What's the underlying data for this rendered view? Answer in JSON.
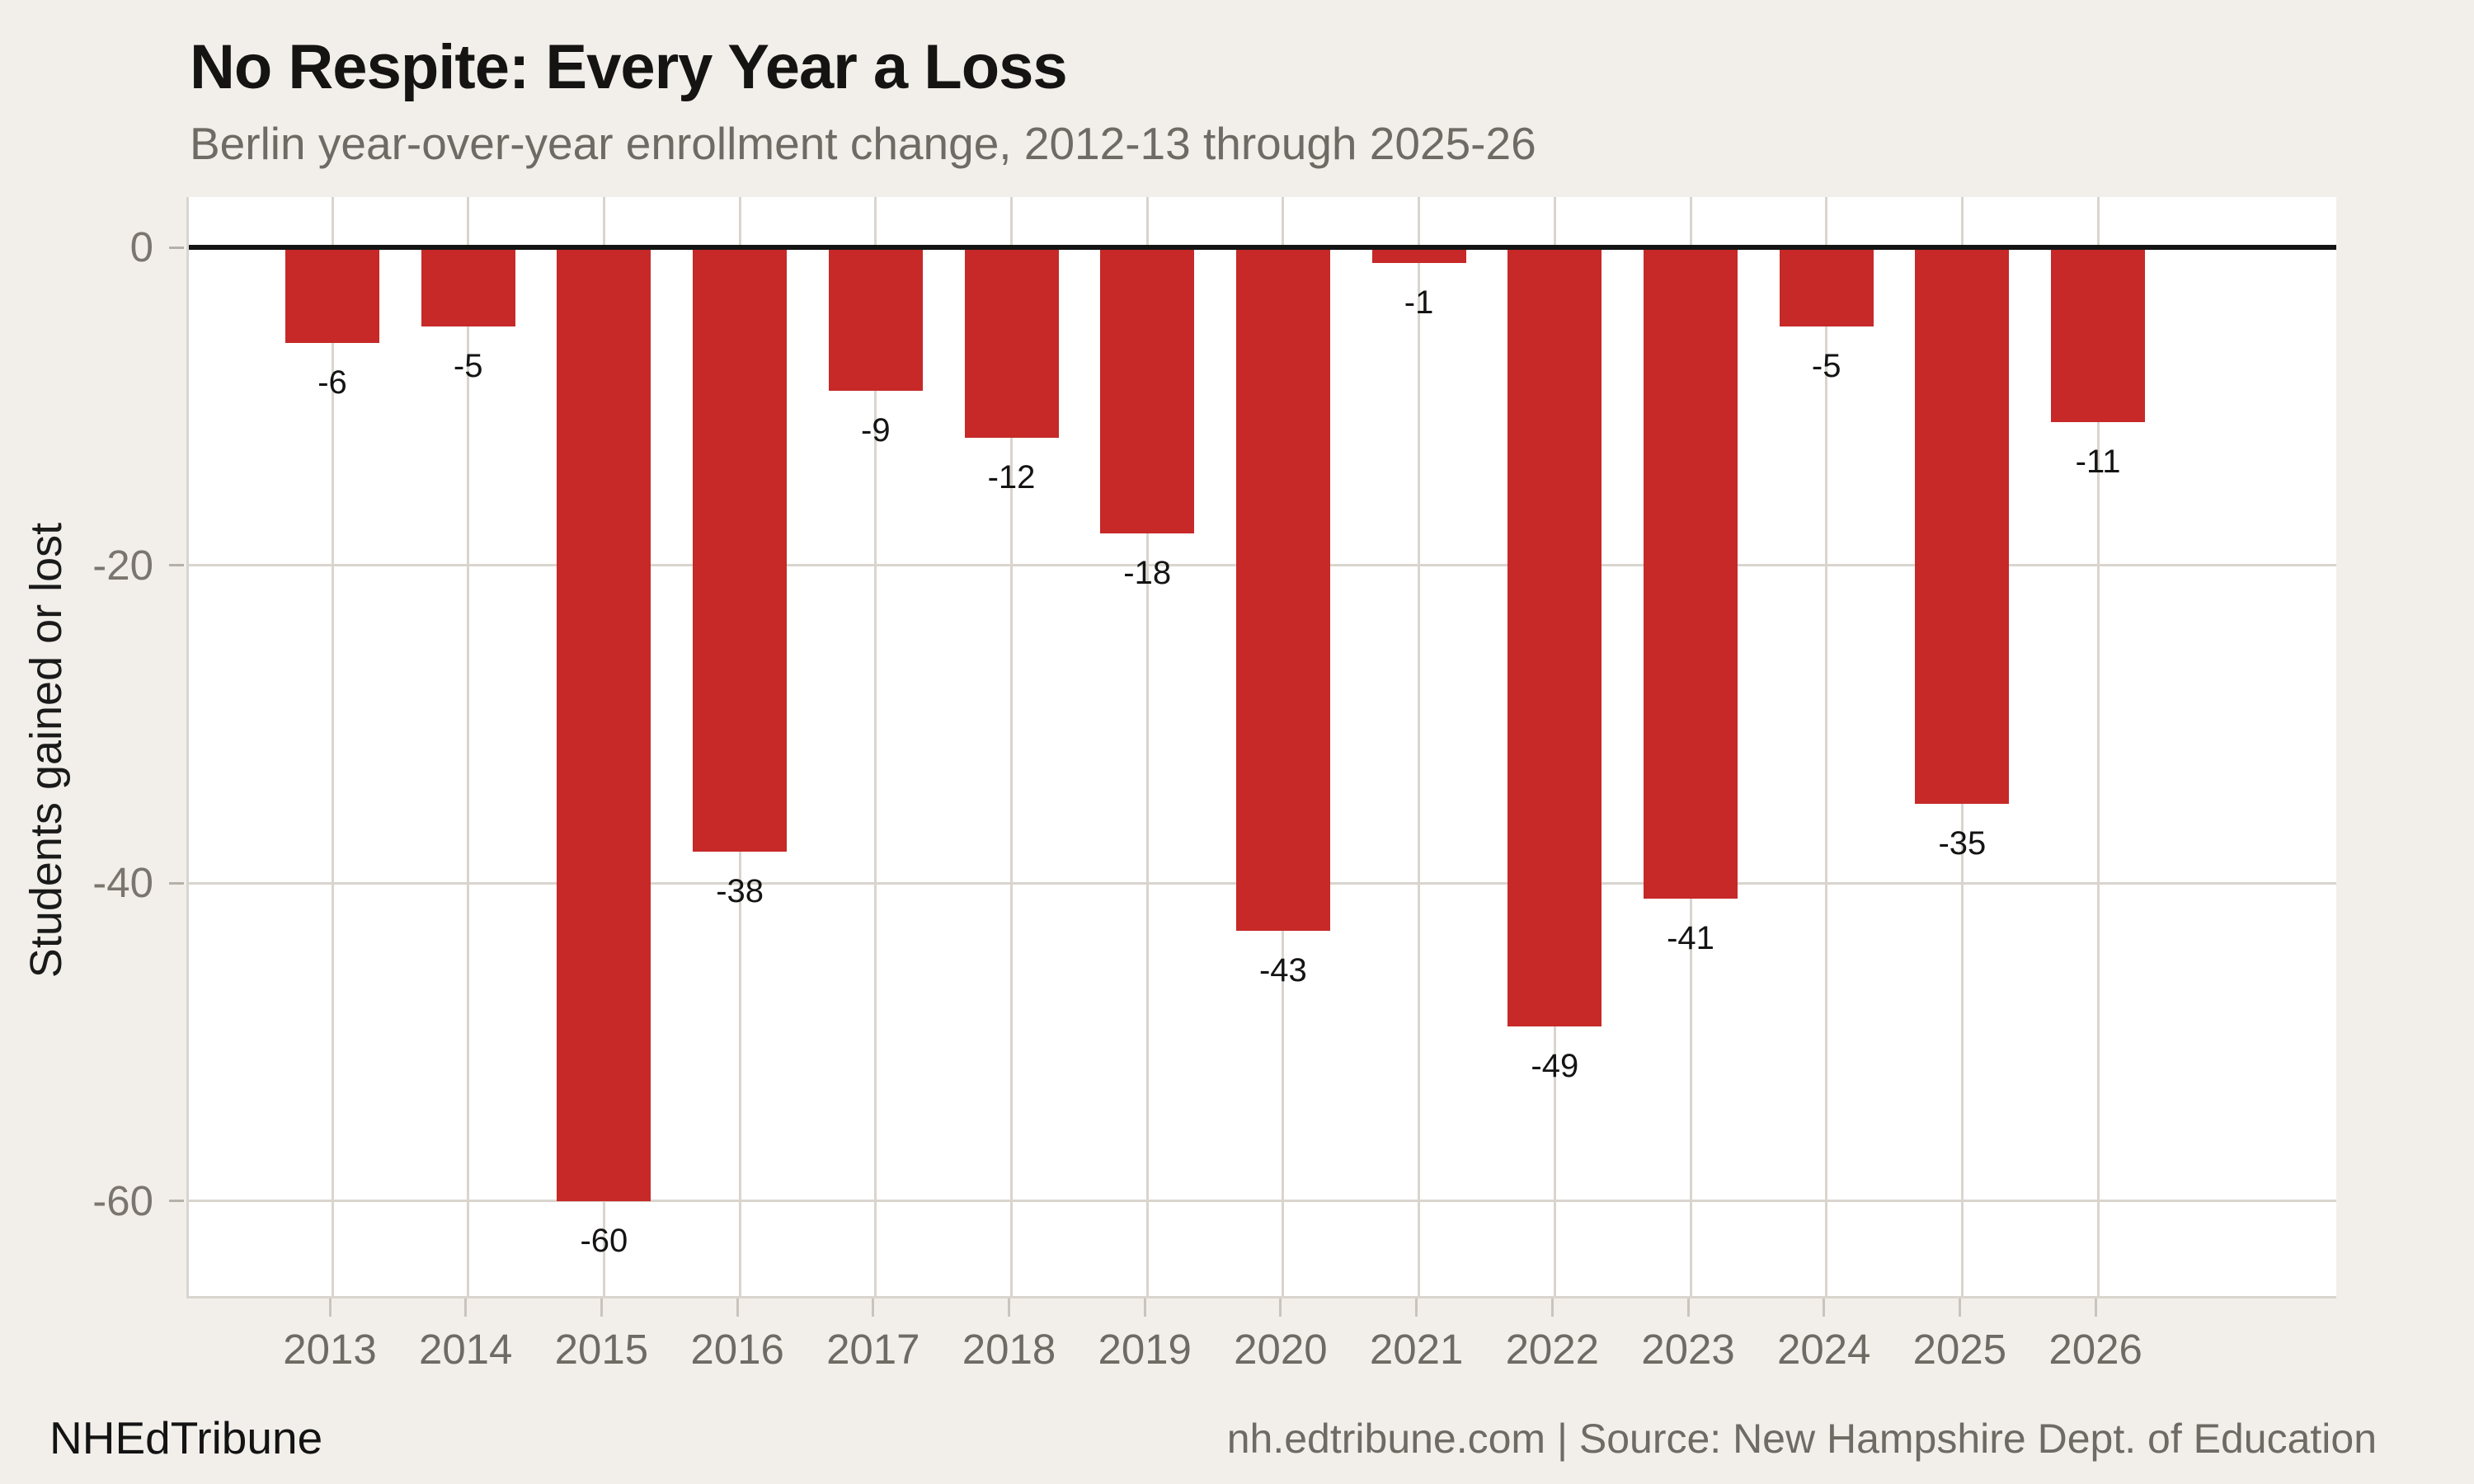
{
  "header": {
    "title": "No Respite: Every Year a Loss",
    "subtitle": "Berlin year-over-year enrollment change, 2012-13 through 2025-26"
  },
  "chart_data": {
    "type": "bar",
    "categories": [
      "2013",
      "2014",
      "2015",
      "2016",
      "2017",
      "2018",
      "2019",
      "2020",
      "2021",
      "2022",
      "2023",
      "2024",
      "2025",
      "2026"
    ],
    "values": [
      -6,
      -5,
      -60,
      -38,
      -9,
      -12,
      -18,
      -43,
      -1,
      -49,
      -41,
      -5,
      -35,
      -11
    ],
    "bar_labels": [
      "-6",
      "-5",
      "-60",
      "-38",
      "-9",
      "-12",
      "-18",
      "-43",
      "-1",
      "-49",
      "-41",
      "-5",
      "-35",
      "-11"
    ],
    "title": "No Respite: Every Year a Loss",
    "subtitle": "Berlin year-over-year enrollment change, 2012-13 through 2025-26",
    "xlabel": "",
    "ylabel": "Students gained or lost",
    "y_ticks": [
      0,
      -20,
      -40,
      -60
    ],
    "y_tick_labels": [
      "0",
      "-20",
      "-40",
      "-60"
    ],
    "ylim": [
      -66,
      3
    ],
    "grid": "on",
    "legend": "none",
    "bar_color": "#C62928",
    "zero_line_color": "#141414",
    "background_color": "#F2EFEA",
    "plot_background_color": "#FFFFFF"
  },
  "footer": {
    "brand": "NHEdTribune",
    "source": "nh.edtribune.com | Source: New Hampshire Dept. of Education"
  }
}
